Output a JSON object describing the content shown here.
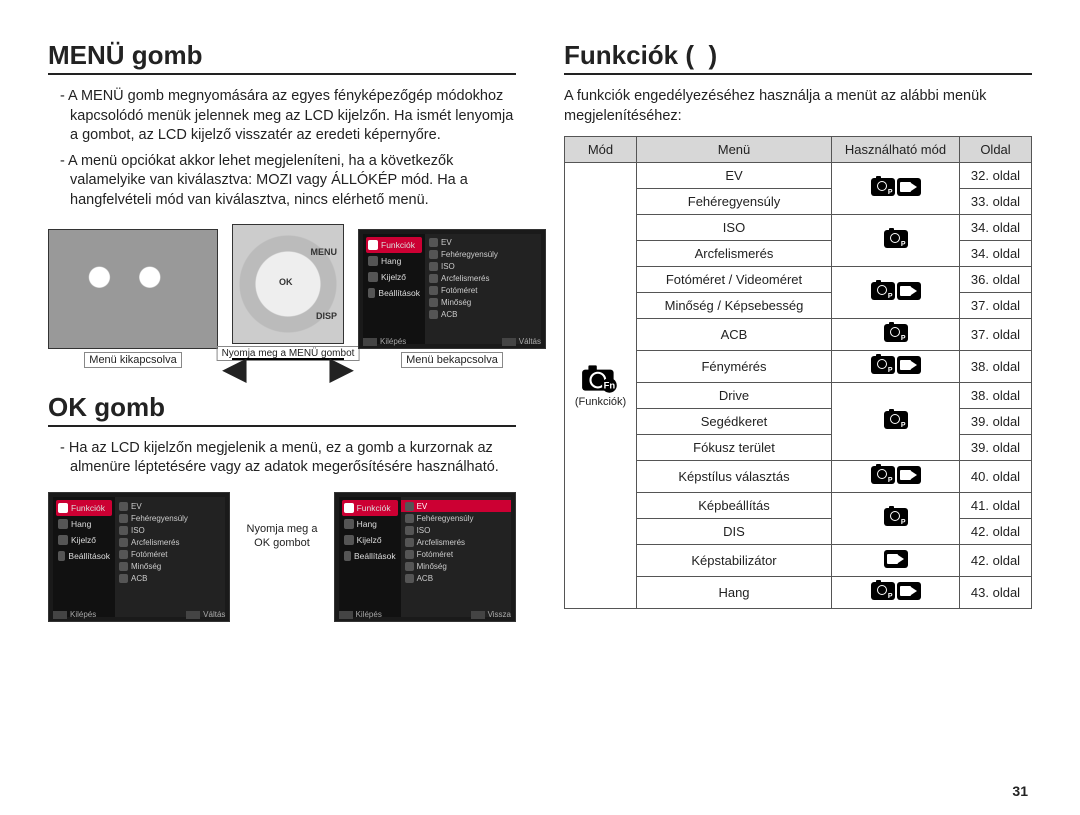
{
  "page_number": "31",
  "left": {
    "h1_menu": "MENÜ gomb",
    "menu_p1": "- A MENÜ gomb megnyomására az egyes fényképezőgép módokhoz kapcsolódó menük jelennek meg az LCD kijelzőn. Ha ismét lenyomja a gombot, az LCD kijelző visszatér az eredeti képernyőre.",
    "menu_p2": "- A menü opciókat akkor lehet megjeleníteni, ha a következők valamelyike van kiválasztva: MOZI vagy ÁLLÓKÉP mód. Ha a hangfelvételi mód van kiválasztva, nincs elérhető menü.",
    "press_menu": "Nyomja meg a MENÜ gombot",
    "cap_off": "Menü kikapcsolva",
    "cap_on": "Menü bekapcsolva",
    "btn_menu": "MENU",
    "btn_ok": "OK",
    "btn_disp": "DISP",
    "h1_ok": "OK gomb",
    "ok_p1": "- Ha az LCD kijelzőn megjelenik a menü, ez a gomb a kurzornak az almenüre léptetésére vagy az adatok megerősítésére használható.",
    "press_ok_l1": "Nyomja meg a",
    "press_ok_l2": "OK gombot",
    "menu_screen": {
      "left_items": [
        "Funkciók",
        "Hang",
        "Kijelző",
        "Beállítások"
      ],
      "right_items": [
        "EV",
        "Fehéregyensúly",
        "ISO",
        "Arcfelismerés",
        "Fotóméret",
        "Minőség",
        "ACB"
      ],
      "foot_left": "Kilépés",
      "foot_right_valtas": "Váltás",
      "foot_right_vissza": "Vissza"
    }
  },
  "right": {
    "h1": "Funkciók (",
    "h1_close": " )",
    "intro": "A funkciók engedélyezéséhez használja a menüt az alábbi menük megjelenítéséhez:",
    "mode_cell_label": "(Funkciók)",
    "headers": {
      "mode": "Mód",
      "menu": "Menü",
      "usable": "Használható mód",
      "page": "Oldal"
    },
    "rows": [
      {
        "menu": "EV",
        "modes": [
          "photo",
          "video"
        ],
        "page": "32. oldal",
        "span_start": true
      },
      {
        "menu": "Fehéregyensúly",
        "modes": [],
        "page": "33. oldal"
      },
      {
        "menu": "ISO",
        "modes": [
          "photo"
        ],
        "page": "34. oldal",
        "span_start": true
      },
      {
        "menu": "Arcfelismerés",
        "modes": [],
        "page": "34. oldal"
      },
      {
        "menu": "Fotóméret / Videoméret",
        "modes": [
          "photo",
          "video"
        ],
        "page": "36. oldal",
        "span_start": true
      },
      {
        "menu": "Minőség / Képsebesség",
        "modes": [],
        "page": "37. oldal"
      },
      {
        "menu": "ACB",
        "modes": [
          "photo"
        ],
        "page": "37. oldal"
      },
      {
        "menu": "Fénymérés",
        "modes": [
          "photo",
          "video"
        ],
        "page": "38. oldal"
      },
      {
        "menu": "Drive",
        "modes": [
          "photo"
        ],
        "page": "38. oldal",
        "span_start": true
      },
      {
        "menu": "Segédkeret",
        "modes": [],
        "page": "39. oldal"
      },
      {
        "menu": "Fókusz terület",
        "modes": [],
        "page": "39. oldal"
      },
      {
        "menu": "Képstílus választás",
        "modes": [
          "photo",
          "video"
        ],
        "page": "40. oldal"
      },
      {
        "menu": "Képbeállítás",
        "modes": [
          "photo"
        ],
        "page": "41. oldal",
        "span_start": true
      },
      {
        "menu": "DIS",
        "modes": [],
        "page": "42. oldal"
      },
      {
        "menu": "Képstabilizátor",
        "modes": [
          "video"
        ],
        "page": "42. oldal"
      },
      {
        "menu": "Hang",
        "modes": [
          "photo",
          "video"
        ],
        "page": "43. oldal"
      }
    ]
  },
  "style": {
    "header_bg": "#d7d7d7",
    "border": "#555555",
    "icon_bg": "#000000",
    "highlight": "#cc0033"
  }
}
